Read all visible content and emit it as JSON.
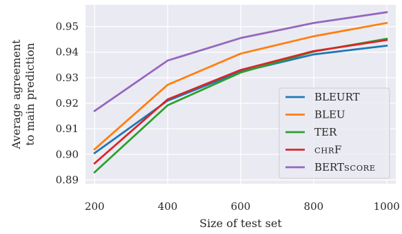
{
  "chart_data": {
    "type": "line",
    "xlabel": "Size of test set",
    "ylabel_line1": "Average agreement",
    "ylabel_line2": "to main prediction",
    "x": [
      200,
      400,
      600,
      800,
      1000
    ],
    "xticks": [
      "200",
      "400",
      "600",
      "800",
      "1000"
    ],
    "yticks": [
      "0.89",
      "0.90",
      "0.91",
      "0.92",
      "0.93",
      "0.94",
      "0.95"
    ],
    "ytick_values": [
      0.89,
      0.9,
      0.91,
      0.92,
      0.93,
      0.94,
      0.95
    ],
    "xlim": [
      175,
      1025
    ],
    "ylim": [
      0.8885,
      0.9585
    ],
    "grid": true,
    "legend_position": "lower-right",
    "series": [
      {
        "name": "BLEURT",
        "color": "#1f77b4",
        "values": [
          0.9005,
          0.921,
          0.9323,
          0.9391,
          0.9425
        ]
      },
      {
        "name": "BLEU",
        "color": "#ff7f0e",
        "values": [
          0.902,
          0.9272,
          0.9394,
          0.9462,
          0.9514
        ]
      },
      {
        "name": "TER",
        "color": "#2ca02c",
        "values": [
          0.893,
          0.9192,
          0.932,
          0.9402,
          0.9452
        ]
      },
      {
        "name": "CHRF",
        "color": "#d62728",
        "values": [
          0.8965,
          0.9215,
          0.933,
          0.9404,
          0.9447
        ]
      },
      {
        "name": "BERTSCORE",
        "color": "#9467bd",
        "values": [
          0.917,
          0.9367,
          0.9455,
          0.9514,
          0.9556
        ]
      }
    ]
  }
}
